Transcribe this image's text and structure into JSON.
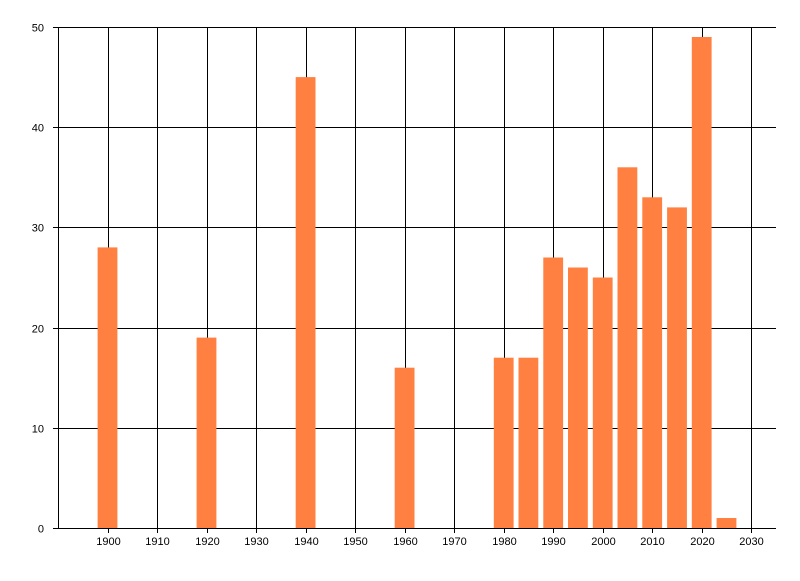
{
  "chart_data": {
    "type": "bar",
    "title": "",
    "xlabel": "",
    "ylabel": "",
    "x": [
      1900,
      1920,
      1940,
      1960,
      1980,
      1985,
      1990,
      1995,
      2000,
      2005,
      2010,
      2015,
      2020,
      2025
    ],
    "values": [
      28,
      19,
      45,
      16,
      17,
      17,
      27,
      26,
      25,
      36,
      33,
      32,
      49,
      1
    ],
    "xlim": [
      1890,
      2035
    ],
    "ylim": [
      0,
      50
    ],
    "x_ticks": [
      1900,
      1910,
      1920,
      1930,
      1940,
      1950,
      1960,
      1970,
      1980,
      1990,
      2000,
      2010,
      2020,
      2030
    ],
    "y_ticks": [
      0,
      10,
      20,
      30,
      40,
      50
    ],
    "grid": true,
    "legend": "none",
    "bar_color": "#ff8040",
    "grid_color": "#000000"
  }
}
